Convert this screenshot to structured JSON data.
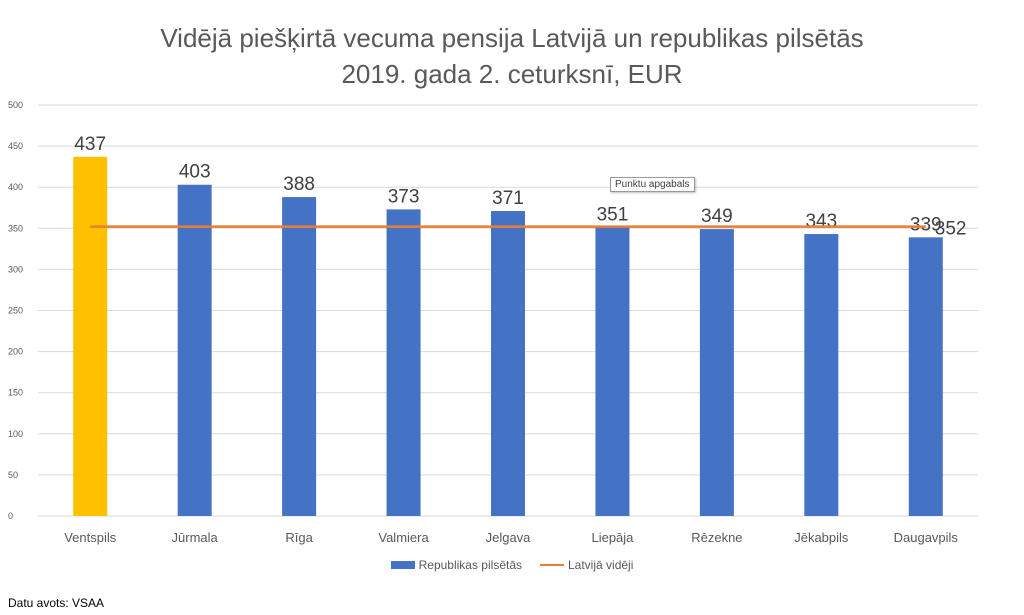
{
  "chart_data": {
    "type": "bar",
    "title": "Vidējā piešķirtā vecuma pensija Latvijā un republikas pilsētās",
    "subtitle": "2019. gada 2. ceturksnī, EUR",
    "categories": [
      "Ventspils",
      "Jūrmala",
      "Rīga",
      "Valmiera",
      "Jelgava",
      "Liepāja",
      "Rēzekne",
      "Jēkabpils",
      "Daugavpils"
    ],
    "series": [
      {
        "name": "Republikas pilsētās",
        "type": "bar",
        "values": [
          437,
          403,
          388,
          373,
          371,
          351,
          349,
          343,
          339
        ]
      },
      {
        "name": "Latvijā vidēji",
        "type": "line",
        "values": [
          352,
          352,
          352,
          352,
          352,
          352,
          352,
          352,
          352
        ]
      }
    ],
    "line_label": "352",
    "highlight_category": "Ventspils",
    "ylim": [
      0,
      500
    ],
    "yticks": [
      0,
      50,
      100,
      150,
      200,
      250,
      300,
      350,
      400,
      450,
      500
    ],
    "grid": true,
    "legend_position": "bottom",
    "xlabel": "",
    "ylabel": ""
  },
  "colors": {
    "bar": "#4472C4",
    "highlight": "#FFC000",
    "line": "#ED7D31",
    "grid": "#D9D9D9",
    "text": "#595959",
    "label": "#404040"
  },
  "tooltip": "Punktu apgabals",
  "source": "Datu avots: VSAA"
}
